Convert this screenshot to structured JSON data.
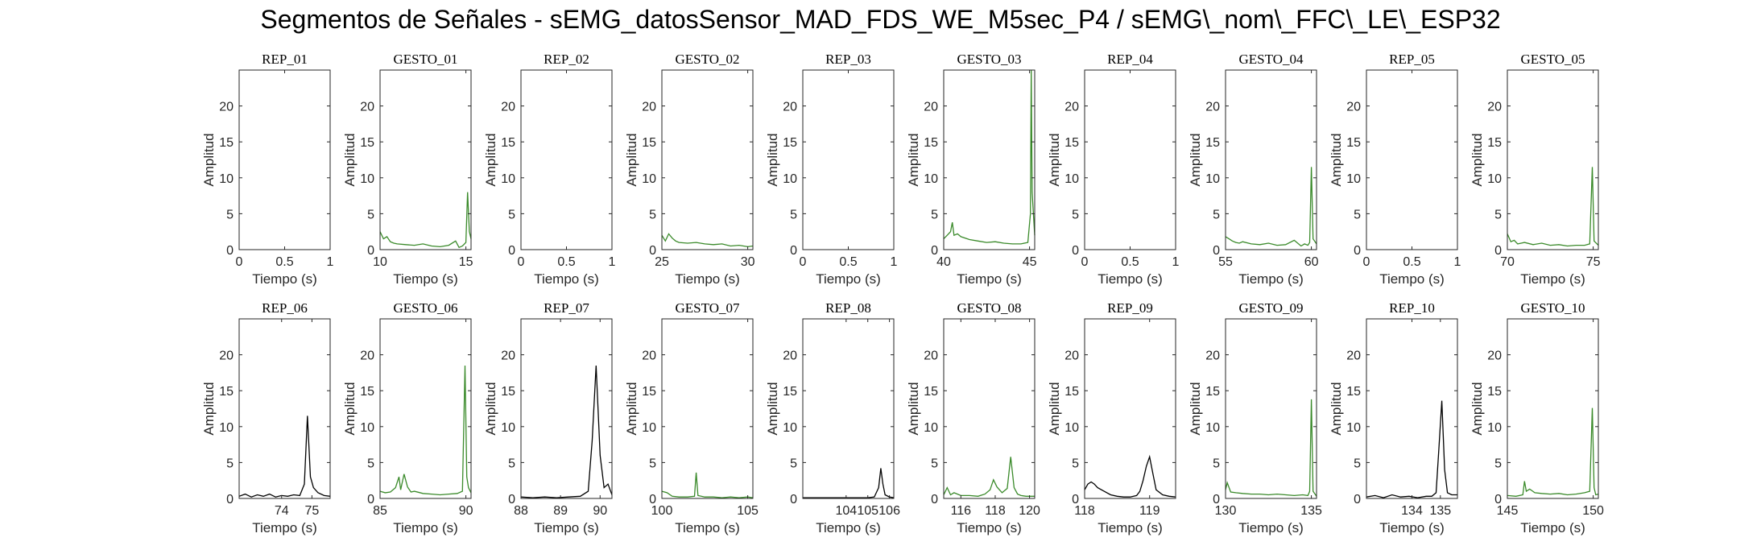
{
  "title": "Segmentos de Señales - sEMG_datosSensor_MAD_FDS_WE_M5sec_P4 / sEMG\\_nom\\_FFC\\_LE\\_ESP32",
  "colors": {
    "rep": "#000000",
    "gesto": "#3a8a2a",
    "axes": "#262626"
  },
  "chart_data": [
    {
      "type": "line",
      "title": "REP_01",
      "xlabel": "Tiempo (s)",
      "ylabel": "Amplitud",
      "xlim": [
        0,
        1
      ],
      "ylim": [
        0,
        25
      ],
      "xticks": [
        "0",
        "0.5",
        "1"
      ],
      "yticks": [
        "0",
        "5",
        "10",
        "15",
        "20"
      ],
      "color": "#000000",
      "x": [],
      "y": []
    },
    {
      "type": "line",
      "title": "GESTO_01",
      "xlabel": "Tiempo (s)",
      "ylabel": "Amplitud",
      "xlim": [
        10,
        15.3
      ],
      "ylim": [
        0,
        25
      ],
      "xticks": [
        "10",
        "15"
      ],
      "yticks": [
        "0",
        "5",
        "10",
        "15",
        "20"
      ],
      "color": "#3a8a2a",
      "x": [
        10,
        10.2,
        10.4,
        10.6,
        10.8,
        11,
        11.5,
        12,
        12.5,
        13,
        13.5,
        14,
        14.4,
        14.6,
        14.8,
        15,
        15.1,
        15.2,
        15.3
      ],
      "y": [
        2.5,
        1.5,
        1.8,
        1.1,
        0.9,
        0.8,
        0.7,
        0.6,
        0.8,
        0.5,
        0.4,
        0.6,
        1.2,
        0.3,
        0.5,
        1,
        8,
        2.5,
        1.5
      ]
    },
    {
      "type": "line",
      "title": "REP_02",
      "xlabel": "Tiempo (s)",
      "ylabel": "Amplitud",
      "xlim": [
        0,
        1
      ],
      "ylim": [
        0,
        25
      ],
      "xticks": [
        "0",
        "0.5",
        "1"
      ],
      "yticks": [
        "0",
        "5",
        "10",
        "15",
        "20"
      ],
      "color": "#000000",
      "x": [],
      "y": []
    },
    {
      "type": "line",
      "title": "GESTO_02",
      "xlabel": "Tiempo (s)",
      "ylabel": "Amplitud",
      "xlim": [
        25,
        30.3
      ],
      "ylim": [
        0,
        25
      ],
      "xticks": [
        "25",
        "30"
      ],
      "yticks": [
        "0",
        "5",
        "10",
        "15",
        "20"
      ],
      "color": "#3a8a2a",
      "x": [
        25,
        25.2,
        25.4,
        25.6,
        25.8,
        26,
        26.5,
        27,
        27.5,
        28,
        28.5,
        29,
        29.5,
        30,
        30.3
      ],
      "y": [
        2,
        1.2,
        2.2,
        1.6,
        1.2,
        1,
        0.9,
        1,
        0.8,
        0.7,
        0.8,
        0.5,
        0.6,
        0.4,
        0.5
      ]
    },
    {
      "type": "line",
      "title": "REP_03",
      "xlabel": "Tiempo (s)",
      "ylabel": "Amplitud",
      "xlim": [
        0,
        1
      ],
      "ylim": [
        0,
        25
      ],
      "xticks": [
        "0",
        "0.5",
        "1"
      ],
      "yticks": [
        "0",
        "5",
        "10",
        "15",
        "20"
      ],
      "color": "#000000",
      "x": [],
      "y": []
    },
    {
      "type": "line",
      "title": "GESTO_03",
      "xlabel": "Tiempo (s)",
      "ylabel": "Amplitud",
      "xlim": [
        40,
        45.3
      ],
      "ylim": [
        0,
        25
      ],
      "xticks": [
        "40",
        "45"
      ],
      "yticks": [
        "0",
        "5",
        "10",
        "15",
        "20"
      ],
      "color": "#3a8a2a",
      "x": [
        40,
        40.2,
        40.4,
        40.5,
        40.6,
        40.8,
        41,
        41.5,
        42,
        42.5,
        43,
        43.5,
        44,
        44.5,
        44.9,
        45.05,
        45.1,
        45.15,
        45.3
      ],
      "y": [
        1.5,
        2,
        2.5,
        3.8,
        2,
        2.2,
        1.8,
        1.4,
        1.2,
        1,
        1.1,
        0.9,
        0.8,
        0.8,
        1,
        5,
        25,
        8,
        2
      ]
    },
    {
      "type": "line",
      "title": "REP_04",
      "xlabel": "Tiempo (s)",
      "ylabel": "Amplitud",
      "xlim": [
        0,
        1
      ],
      "ylim": [
        0,
        25
      ],
      "xticks": [
        "0",
        "0.5",
        "1"
      ],
      "yticks": [
        "0",
        "5",
        "10",
        "15",
        "20"
      ],
      "color": "#000000",
      "x": [],
      "y": []
    },
    {
      "type": "line",
      "title": "GESTO_04",
      "xlabel": "Tiempo (s)",
      "ylabel": "Amplitud",
      "xlim": [
        55,
        60.3
      ],
      "ylim": [
        0,
        25
      ],
      "xticks": [
        "55",
        "60"
      ],
      "yticks": [
        "0",
        "5",
        "10",
        "15",
        "20"
      ],
      "color": "#3a8a2a",
      "x": [
        55,
        55.2,
        55.4,
        55.6,
        55.8,
        56,
        56.5,
        57,
        57.5,
        58,
        58.5,
        59,
        59.4,
        59.6,
        59.8,
        59.9,
        60,
        60.1,
        60.3
      ],
      "y": [
        1.8,
        1.5,
        1.2,
        1,
        0.9,
        1.1,
        0.8,
        0.7,
        0.9,
        0.6,
        0.7,
        1.3,
        0.5,
        0.8,
        0.6,
        1,
        11.5,
        1.5,
        0.8
      ]
    },
    {
      "type": "line",
      "title": "REP_05",
      "xlabel": "Tiempo (s)",
      "ylabel": "Amplitud",
      "xlim": [
        0,
        1
      ],
      "ylim": [
        0,
        25
      ],
      "xticks": [
        "0",
        "0.5",
        "1"
      ],
      "yticks": [
        "0",
        "5",
        "10",
        "15",
        "20"
      ],
      "color": "#000000",
      "x": [],
      "y": []
    },
    {
      "type": "line",
      "title": "GESTO_05",
      "xlabel": "Tiempo (s)",
      "ylabel": "Amplitud",
      "xlim": [
        70,
        75.3
      ],
      "ylim": [
        0,
        25
      ],
      "xticks": [
        "70",
        "75"
      ],
      "yticks": [
        "0",
        "5",
        "10",
        "15",
        "20"
      ],
      "color": "#3a8a2a",
      "x": [
        70,
        70.2,
        70.4,
        70.6,
        70.8,
        71,
        71.5,
        72,
        72.5,
        73,
        73.5,
        74,
        74.5,
        74.8,
        74.95,
        75.05,
        75.3
      ],
      "y": [
        2.2,
        1.1,
        1.3,
        0.8,
        0.9,
        1,
        0.7,
        0.9,
        0.6,
        0.7,
        0.5,
        0.6,
        0.6,
        0.8,
        11.5,
        1.2,
        0.6
      ]
    },
    {
      "type": "line",
      "title": "REP_06",
      "xlabel": "Tiempo (s)",
      "ylabel": "Amplitud",
      "xlim": [
        72.6,
        75.6
      ],
      "ylim": [
        0,
        25
      ],
      "xticks": [
        "74",
        "75"
      ],
      "yticks": [
        "0",
        "5",
        "10",
        "15",
        "20"
      ],
      "color": "#000000",
      "x": [
        72.6,
        72.8,
        73,
        73.2,
        73.4,
        73.6,
        73.8,
        74,
        74.2,
        74.4,
        74.6,
        74.75,
        74.85,
        74.95,
        75.05,
        75.2,
        75.4,
        75.6
      ],
      "y": [
        0.3,
        0.6,
        0.2,
        0.5,
        0.3,
        0.6,
        0.2,
        0.4,
        0.3,
        0.5,
        0.4,
        2,
        11.5,
        3,
        1.5,
        0.8,
        0.4,
        0.3
      ]
    },
    {
      "type": "line",
      "title": "GESTO_06",
      "xlabel": "Tiempo (s)",
      "ylabel": "Amplitud",
      "xlim": [
        85,
        90.3
      ],
      "ylim": [
        0,
        25
      ],
      "xticks": [
        "85",
        "90"
      ],
      "yticks": [
        "0",
        "5",
        "10",
        "15",
        "20"
      ],
      "color": "#3a8a2a",
      "x": [
        85,
        85.3,
        85.6,
        85.9,
        86.1,
        86.2,
        86.4,
        86.6,
        86.8,
        87,
        87.5,
        88,
        88.5,
        89,
        89.5,
        89.8,
        89.95,
        90.05,
        90.15,
        90.3
      ],
      "y": [
        1,
        0.8,
        0.9,
        1.5,
        3,
        1.2,
        3.4,
        1.6,
        0.9,
        1,
        0.7,
        0.6,
        0.5,
        0.6,
        0.7,
        1,
        18.5,
        3,
        1.5,
        0.8
      ]
    },
    {
      "type": "line",
      "title": "REP_07",
      "xlabel": "Tiempo (s)",
      "ylabel": "Amplitud",
      "xlim": [
        88,
        90.3
      ],
      "ylim": [
        0,
        25
      ],
      "xticks": [
        "88",
        "89",
        "90"
      ],
      "yticks": [
        "0",
        "5",
        "10",
        "15",
        "20"
      ],
      "color": "#000000",
      "x": [
        88,
        88.3,
        88.6,
        88.9,
        89.2,
        89.5,
        89.7,
        89.8,
        89.9,
        90,
        90.1,
        90.2,
        90.3
      ],
      "y": [
        0.2,
        0.1,
        0.2,
        0.1,
        0.2,
        0.3,
        1,
        8,
        18.5,
        6,
        1.5,
        2,
        0.5
      ]
    },
    {
      "type": "line",
      "title": "GESTO_07",
      "xlabel": "Tiempo (s)",
      "ylabel": "Amplitud",
      "xlim": [
        100,
        105.3
      ],
      "ylim": [
        0,
        25
      ],
      "xticks": [
        "100",
        "105"
      ],
      "yticks": [
        "0",
        "5",
        "10",
        "15",
        "20"
      ],
      "color": "#3a8a2a",
      "x": [
        100,
        100.3,
        100.6,
        101,
        101.5,
        101.9,
        102,
        102.1,
        102.5,
        103,
        103.5,
        104,
        104.5,
        105,
        105.3
      ],
      "y": [
        1,
        0.8,
        0.3,
        0.2,
        0.2,
        0.3,
        3.6,
        0.4,
        0.2,
        0.2,
        0.1,
        0.2,
        0.1,
        0.2,
        0.1
      ]
    },
    {
      "type": "line",
      "title": "REP_08",
      "xlabel": "Tiempo (s)",
      "ylabel": "Amplitud",
      "xlim": [
        102,
        106.2
      ],
      "ylim": [
        0,
        25
      ],
      "xticks": [
        "104",
        "105",
        "106"
      ],
      "yticks": [
        "0",
        "5",
        "10",
        "15",
        "20"
      ],
      "color": "#000000",
      "x": [
        102,
        102.5,
        103,
        103.5,
        104,
        104.5,
        105,
        105.3,
        105.5,
        105.6,
        105.7,
        105.8,
        106,
        106.2
      ],
      "y": [
        0.1,
        0.1,
        0.1,
        0.1,
        0.1,
        0.1,
        0.1,
        0.2,
        1.5,
        4.2,
        2,
        0.5,
        0.2,
        0.1
      ]
    },
    {
      "type": "line",
      "title": "GESTO_08",
      "xlabel": "Tiempo (s)",
      "ylabel": "Amplitud",
      "xlim": [
        115,
        120.3
      ],
      "ylim": [
        0,
        25
      ],
      "xticks": [
        "116",
        "118",
        "120"
      ],
      "yticks": [
        "0",
        "5",
        "10",
        "15",
        "20"
      ],
      "color": "#3a8a2a",
      "x": [
        115,
        115.2,
        115.4,
        115.6,
        116,
        116.5,
        117,
        117.4,
        117.7,
        117.9,
        118.1,
        118.4,
        118.7,
        118.9,
        119.1,
        119.3,
        119.5,
        119.8,
        120.3
      ],
      "y": [
        0.5,
        1.5,
        0.5,
        0.8,
        0.4,
        0.4,
        0.3,
        0.6,
        1.2,
        2.6,
        1.6,
        0.8,
        1.4,
        5.8,
        1.5,
        0.6,
        0.4,
        0.3,
        0.3
      ]
    },
    {
      "type": "line",
      "title": "REP_09",
      "xlabel": "Tiempo (s)",
      "ylabel": "Amplitud",
      "xlim": [
        118,
        119.4
      ],
      "ylim": [
        0,
        25
      ],
      "xticks": [
        "118",
        "119"
      ],
      "yticks": [
        "0",
        "5",
        "10",
        "15",
        "20"
      ],
      "color": "#000000",
      "x": [
        118,
        118.05,
        118.1,
        118.15,
        118.2,
        118.3,
        118.4,
        118.5,
        118.6,
        118.7,
        118.8,
        118.85,
        118.9,
        118.95,
        119,
        119.05,
        119.1,
        119.2,
        119.3,
        119.4
      ],
      "y": [
        1.2,
        2,
        2.3,
        2,
        1.5,
        1,
        0.5,
        0.3,
        0.2,
        0.2,
        0.4,
        1,
        2.5,
        4.5,
        5.8,
        3.5,
        1.2,
        0.5,
        0.3,
        0.2
      ]
    },
    {
      "type": "line",
      "title": "GESTO_09",
      "xlabel": "Tiempo (s)",
      "ylabel": "Amplitud",
      "xlim": [
        130,
        135.3
      ],
      "ylim": [
        0,
        25
      ],
      "xticks": [
        "130",
        "135"
      ],
      "yticks": [
        "0",
        "5",
        "10",
        "15",
        "20"
      ],
      "color": "#3a8a2a",
      "x": [
        130,
        130.1,
        130.3,
        130.6,
        131,
        131.5,
        132,
        132.5,
        133,
        133.5,
        134,
        134.5,
        134.8,
        134.9,
        135,
        135.1,
        135.3
      ],
      "y": [
        1.2,
        2.2,
        0.9,
        0.8,
        0.7,
        0.6,
        0.6,
        0.5,
        0.6,
        0.5,
        0.4,
        0.5,
        0.4,
        1,
        13.8,
        1,
        0.3
      ]
    },
    {
      "type": "line",
      "title": "REP_10",
      "xlabel": "Tiempo (s)",
      "ylabel": "Amplitud",
      "xlim": [
        132.4,
        135.6
      ],
      "ylim": [
        0,
        25
      ],
      "xticks": [
        "134",
        "135"
      ],
      "yticks": [
        "0",
        "5",
        "10",
        "15",
        "20"
      ],
      "color": "#000000",
      "x": [
        132.4,
        132.7,
        133,
        133.3,
        133.6,
        133.9,
        134.2,
        134.5,
        134.7,
        134.85,
        134.95,
        135.05,
        135.15,
        135.25,
        135.4,
        135.6
      ],
      "y": [
        0.2,
        0.4,
        0.1,
        0.5,
        0.2,
        0.3,
        0.1,
        0.3,
        0.3,
        0.8,
        7,
        13.6,
        4,
        0.8,
        0.5,
        0.5
      ]
    },
    {
      "type": "line",
      "title": "GESTO_10",
      "xlabel": "Tiempo (s)",
      "ylabel": "Amplitud",
      "xlim": [
        145,
        150.3
      ],
      "ylim": [
        0,
        25
      ],
      "xticks": [
        "145",
        "150"
      ],
      "yticks": [
        "0",
        "5",
        "10",
        "15",
        "20"
      ],
      "color": "#3a8a2a",
      "x": [
        145,
        145.5,
        145.9,
        146,
        146.1,
        146.3,
        146.6,
        147,
        147.5,
        148,
        148.5,
        149,
        149.5,
        149.8,
        149.95,
        150.05,
        150.15,
        150.3
      ],
      "y": [
        0.4,
        0.3,
        0.5,
        2.4,
        1,
        1.3,
        0.8,
        0.7,
        0.6,
        0.7,
        0.5,
        0.6,
        0.8,
        1,
        12.6,
        1.5,
        0.5,
        0.6
      ]
    }
  ]
}
